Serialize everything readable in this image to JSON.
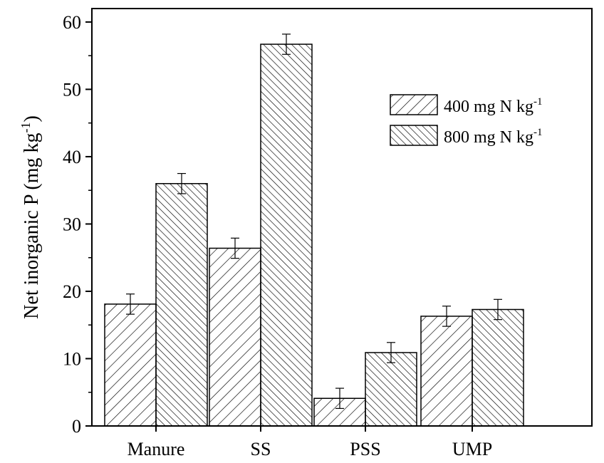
{
  "chart_data": {
    "type": "bar",
    "categories": [
      "Manure",
      "SS",
      "PSS",
      "UMP"
    ],
    "series": [
      {
        "name": "400 mg N kg-1",
        "name_main": "400 mg N kg",
        "name_sup": "-1",
        "pattern": "diagonal-forward",
        "values": [
          18.1,
          26.4,
          4.1,
          16.3
        ],
        "errors": [
          1.5,
          1.5,
          1.5,
          1.5
        ]
      },
      {
        "name": "800 mg N kg-1",
        "name_main": "800 mg N kg",
        "name_sup": "-1",
        "pattern": "diagonal-backward",
        "values": [
          36.0,
          56.7,
          10.9,
          17.3
        ],
        "errors": [
          1.5,
          1.5,
          1.5,
          1.5
        ]
      }
    ],
    "title": "",
    "xlabel": "",
    "ylabel": "Net inorganic P (mg kg-1)",
    "ylabel_main": "Net inorganic P (mg kg",
    "ylabel_sup": "-1",
    "ylabel_end": ")",
    "ylim": [
      0,
      62
    ],
    "yticks": [
      0,
      10,
      20,
      30,
      40,
      50,
      60
    ],
    "legend_position": "top-right",
    "grid": false,
    "colors": {
      "bar_fill": "#ffffff",
      "stroke": "#000000"
    }
  }
}
